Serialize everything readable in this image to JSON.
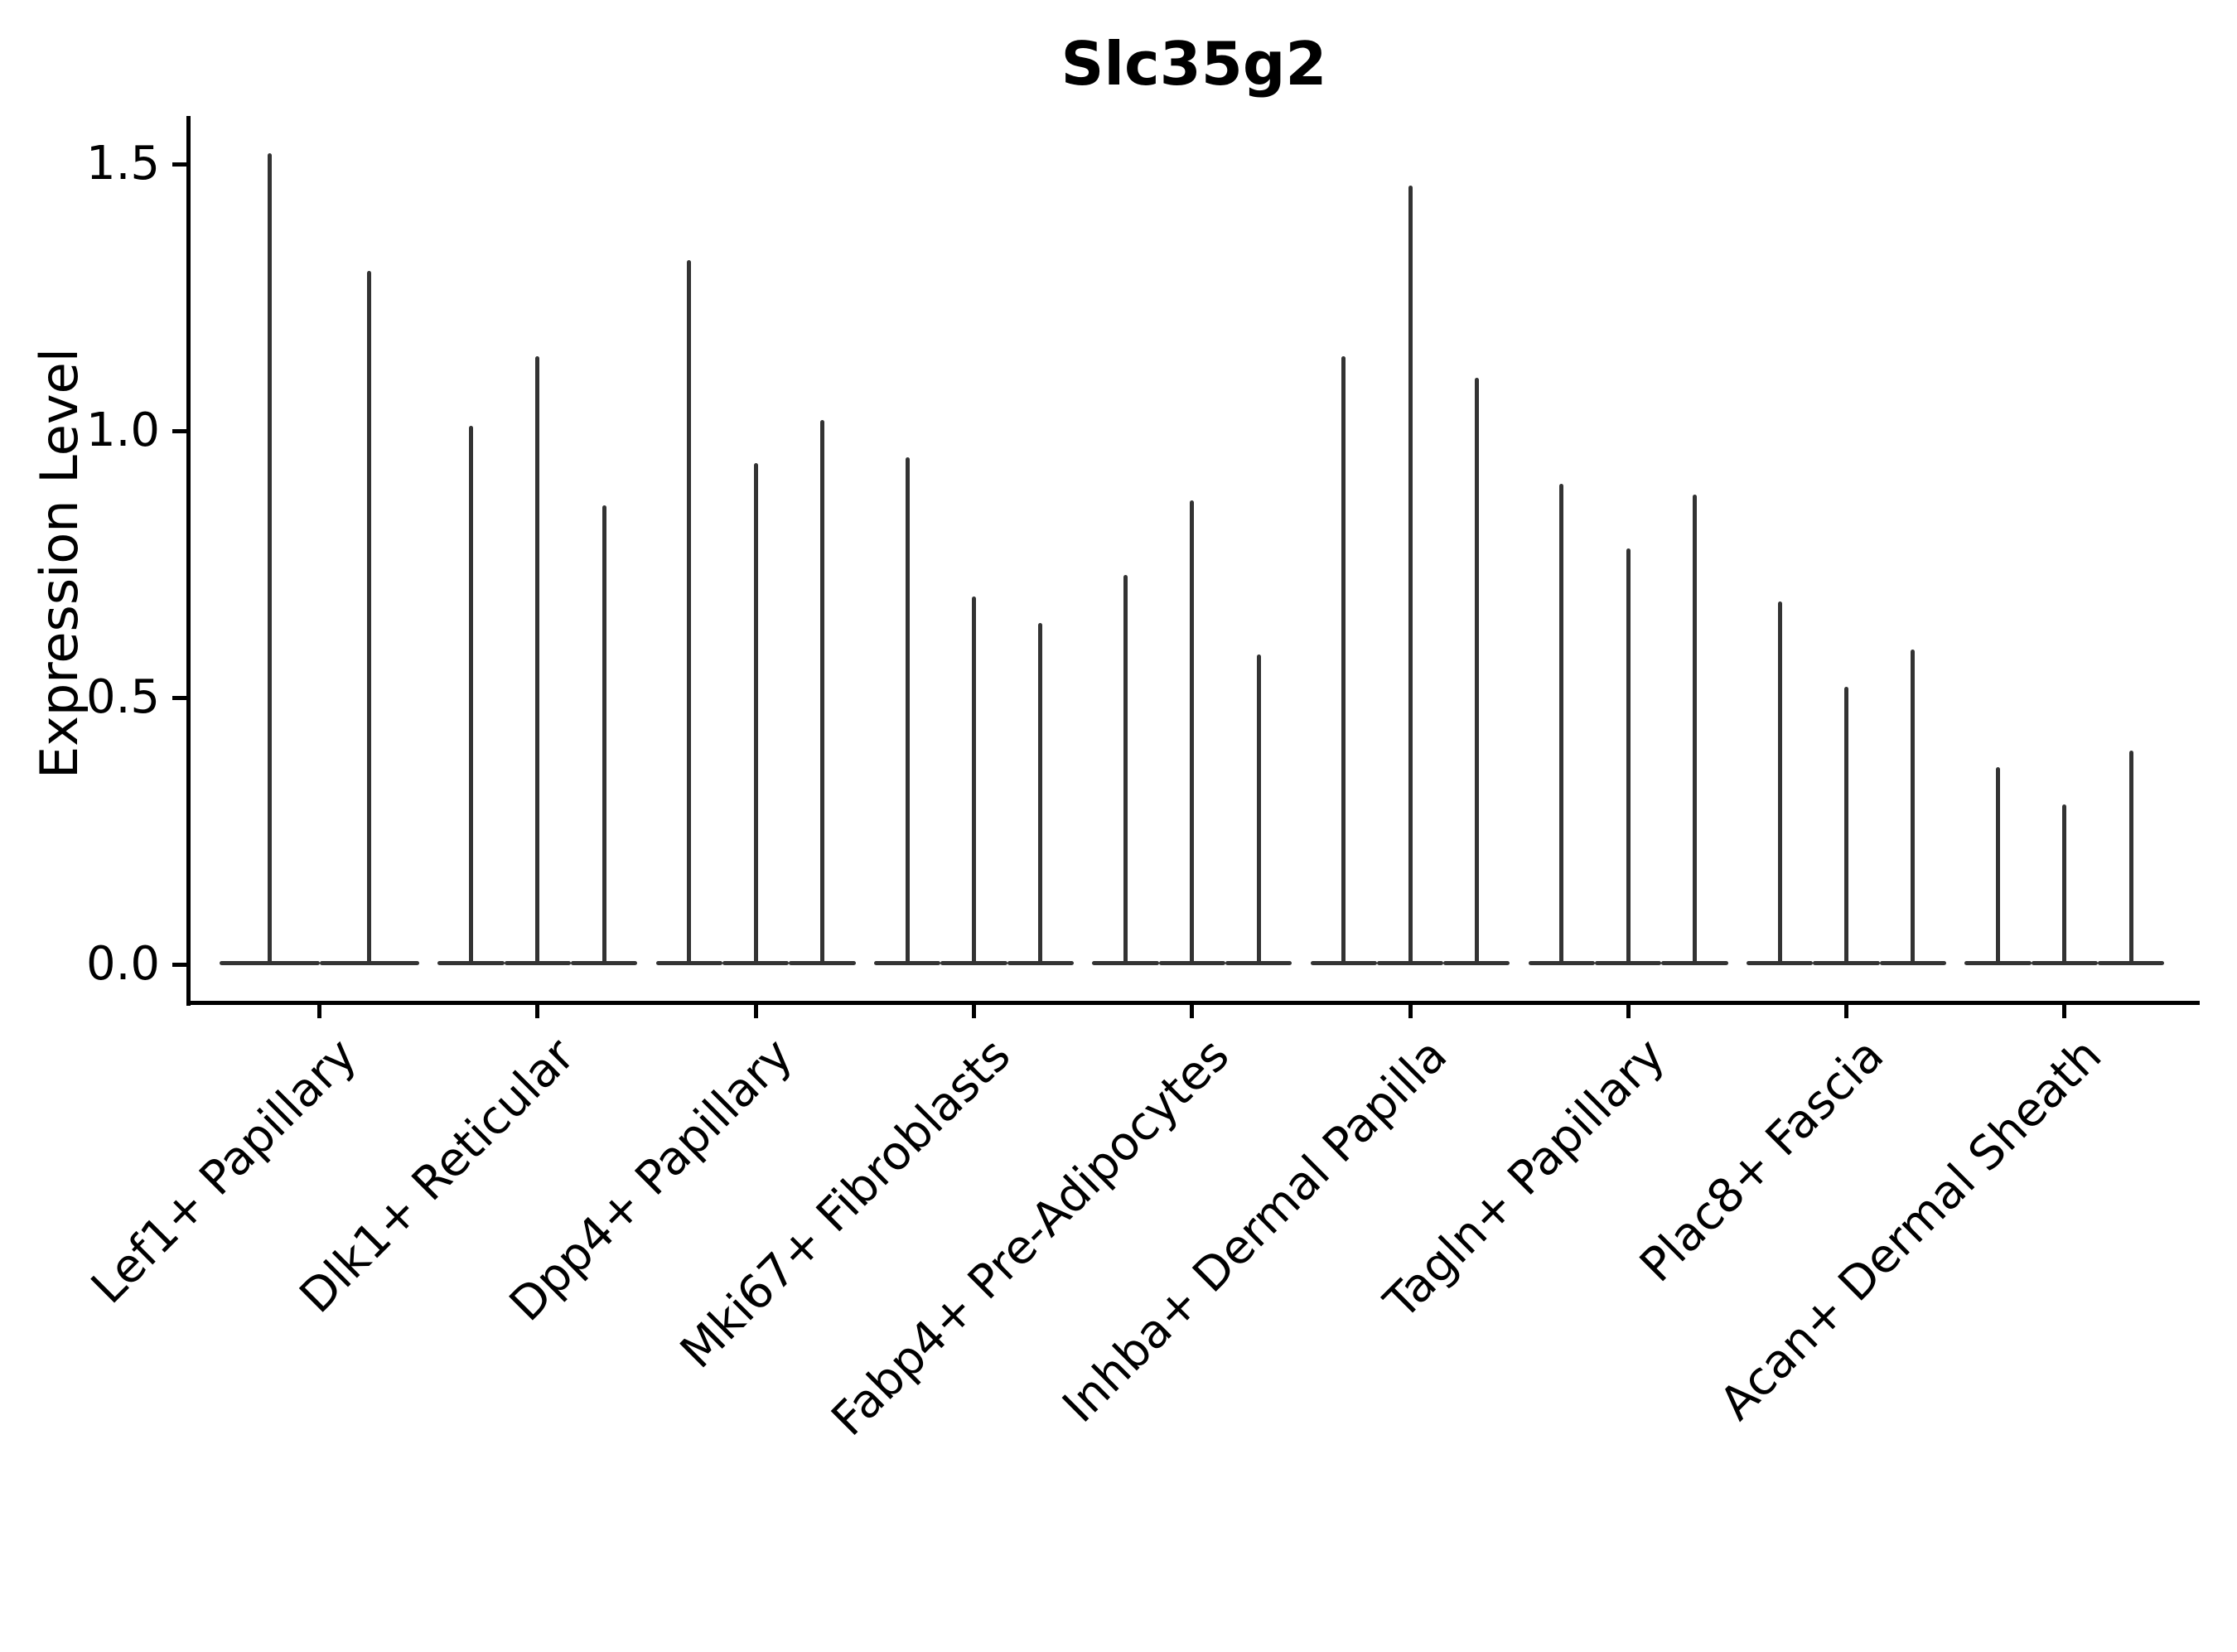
{
  "chart_data": {
    "type": "violin",
    "title": "Slc35g2",
    "xlabel": "",
    "ylabel": "Expression Level",
    "ylim": [
      -0.07,
      1.59
    ],
    "yticks": [
      0.0,
      0.5,
      1.0,
      1.5
    ],
    "ytick_labels": [
      "0.0",
      "0.5",
      "1.0",
      "1.5"
    ],
    "grid": false,
    "legend": "none",
    "background": "#ffffff",
    "axis_color": "#000000",
    "violin_color": "#333333",
    "style_note": "Seurat-style gene expression violin plot; expression is sparse so each violin renders as a wide flat sliver at 0 with a needle-thin spike rising to the maximum expression value; one group of 2 violins, eight groups of 3 violins",
    "categories": [
      "Lef1+ Papillary",
      "Dlk1+ Reticular",
      "Dpp4+ Papillary",
      "Mki67+ Fibroblasts",
      "Fabp4+ Pre-Adipocytes",
      "Inhba+ Dermal Papilla",
      "Tagln+ Papillary",
      "Plac8+ Fascia",
      "Acan+ Dermal Sheath"
    ],
    "groups": [
      {
        "label": "Lef1+ Papillary",
        "spike_heights": [
          1.52,
          1.3
        ]
      },
      {
        "label": "Dlk1+ Reticular",
        "spike_heights": [
          1.01,
          1.14,
          0.86
        ]
      },
      {
        "label": "Dpp4+ Papillary",
        "spike_heights": [
          1.32,
          0.94,
          1.02
        ]
      },
      {
        "label": "Mki67+ Fibroblasts",
        "spike_heights": [
          0.95,
          0.69,
          0.64
        ]
      },
      {
        "label": "Fabp4+ Pre-Adipocytes",
        "spike_heights": [
          0.73,
          0.87,
          0.58
        ]
      },
      {
        "label": "Inhba+ Dermal Papilla",
        "spike_heights": [
          1.14,
          1.46,
          1.1
        ]
      },
      {
        "label": "Tagln+ Papillary",
        "spike_heights": [
          0.9,
          0.78,
          0.88
        ]
      },
      {
        "label": "Plac8+ Fascia",
        "spike_heights": [
          0.68,
          0.52,
          0.59
        ]
      },
      {
        "label": "Acan+ Dermal Sheath",
        "spike_heights": [
          0.37,
          0.3,
          0.4
        ]
      }
    ]
  }
}
